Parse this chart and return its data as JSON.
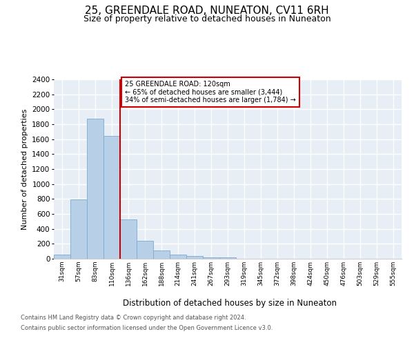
{
  "title": "25, GREENDALE ROAD, NUNEATON, CV11 6RH",
  "subtitle": "Size of property relative to detached houses in Nuneaton",
  "xlabel": "Distribution of detached houses by size in Nuneaton",
  "ylabel": "Number of detached properties",
  "categories": [
    "31sqm",
    "57sqm",
    "83sqm",
    "110sqm",
    "136sqm",
    "162sqm",
    "188sqm",
    "214sqm",
    "241sqm",
    "267sqm",
    "293sqm",
    "319sqm",
    "345sqm",
    "372sqm",
    "398sqm",
    "424sqm",
    "450sqm",
    "476sqm",
    "503sqm",
    "529sqm",
    "555sqm"
  ],
  "values": [
    60,
    790,
    1870,
    1640,
    530,
    240,
    110,
    60,
    35,
    20,
    15,
    0,
    0,
    0,
    0,
    0,
    0,
    0,
    0,
    0,
    0
  ],
  "bar_color": "#b8cfe8",
  "bar_edge_color": "#7aaad0",
  "vline_x": 3.5,
  "vline_color": "#cc0000",
  "annotation_text": "25 GREENDALE ROAD: 120sqm\n← 65% of detached houses are smaller (3,444)\n34% of semi-detached houses are larger (1,784) →",
  "annotation_box_color": "#cc0000",
  "ylim": [
    0,
    2400
  ],
  "yticks": [
    0,
    200,
    400,
    600,
    800,
    1000,
    1200,
    1400,
    1600,
    1800,
    2000,
    2200,
    2400
  ],
  "background_color": "#e8eef5",
  "grid_color": "#ffffff",
  "footer_line1": "Contains HM Land Registry data © Crown copyright and database right 2024.",
  "footer_line2": "Contains public sector information licensed under the Open Government Licence v3.0.",
  "title_fontsize": 11,
  "subtitle_fontsize": 9,
  "xlabel_fontsize": 8.5,
  "ylabel_fontsize": 8
}
